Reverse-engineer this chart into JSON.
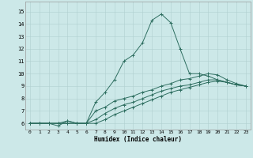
{
  "xlabel": "Humidex (Indice chaleur)",
  "xlim": [
    -0.5,
    23.5
  ],
  "ylim": [
    5.5,
    15.8
  ],
  "xticks": [
    0,
    1,
    2,
    3,
    4,
    5,
    6,
    7,
    8,
    9,
    10,
    11,
    12,
    13,
    14,
    15,
    16,
    17,
    18,
    19,
    20,
    21,
    22,
    23
  ],
  "yticks": [
    6,
    7,
    8,
    9,
    10,
    11,
    12,
    13,
    14,
    15
  ],
  "bg_color": "#cce8e8",
  "grid_color": "#b0d0d0",
  "line_color": "#2e6e60",
  "line1_x": [
    0,
    1,
    2,
    3,
    4,
    5,
    6,
    7,
    8,
    9,
    10,
    11,
    12,
    13,
    14,
    15,
    16,
    17,
    18,
    19,
    20,
    21,
    22,
    23
  ],
  "line1_y": [
    6,
    6,
    6,
    5.8,
    6.2,
    6,
    6,
    7.7,
    8.5,
    9.5,
    11.0,
    11.5,
    12.5,
    14.3,
    14.8,
    14.1,
    12.0,
    10.0,
    10.0,
    9.8,
    9.5,
    9.3,
    9.1,
    9.0
  ],
  "line2_x": [
    0,
    1,
    2,
    3,
    4,
    5,
    6,
    7,
    8,
    9,
    10,
    11,
    12,
    13,
    14,
    15,
    16,
    17,
    18,
    19,
    20,
    21,
    22,
    23
  ],
  "line2_y": [
    6,
    6,
    6,
    6,
    6.2,
    6,
    6,
    7.0,
    7.3,
    7.8,
    8.0,
    8.2,
    8.5,
    8.7,
    9.0,
    9.2,
    9.5,
    9.6,
    9.8,
    10.0,
    9.9,
    9.5,
    9.2,
    9.0
  ],
  "line3_x": [
    0,
    1,
    2,
    3,
    4,
    5,
    6,
    7,
    8,
    9,
    10,
    11,
    12,
    13,
    14,
    15,
    16,
    17,
    18,
    19,
    20,
    21,
    22,
    23
  ],
  "line3_y": [
    6,
    6,
    6,
    6,
    6,
    6,
    6,
    6.3,
    6.8,
    7.2,
    7.5,
    7.7,
    8.0,
    8.3,
    8.6,
    8.8,
    9.0,
    9.1,
    9.3,
    9.5,
    9.5,
    9.3,
    9.1,
    9.0
  ],
  "line4_x": [
    0,
    1,
    2,
    3,
    4,
    5,
    6,
    7,
    8,
    9,
    10,
    11,
    12,
    13,
    14,
    15,
    16,
    17,
    18,
    19,
    20,
    21,
    22,
    23
  ],
  "line4_y": [
    6,
    6,
    6,
    6,
    6,
    6,
    6,
    6,
    6.3,
    6.7,
    7.0,
    7.3,
    7.6,
    7.9,
    8.2,
    8.5,
    8.7,
    8.9,
    9.1,
    9.3,
    9.4,
    9.3,
    9.1,
    9.0
  ]
}
